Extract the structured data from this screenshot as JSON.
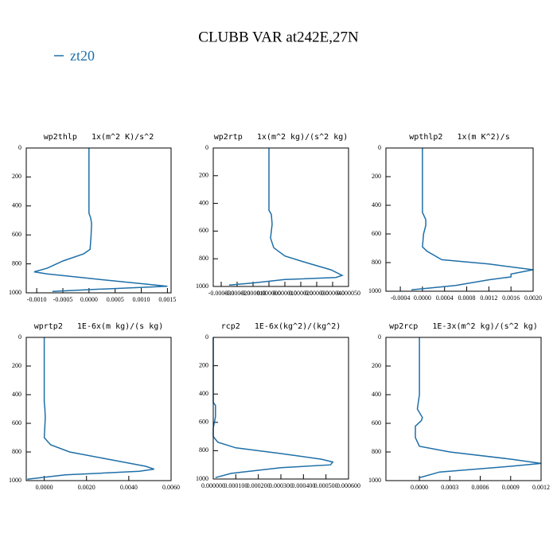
{
  "title": "CLUBB VAR at242E,27N",
  "legend": {
    "name": "zt20",
    "color": "#1f6fa8"
  },
  "chart_data": [
    {
      "type": "line",
      "title": "wp2thlp   1x(m^2 K)/s^2",
      "color": "#1f6fa8",
      "y": [
        0,
        450,
        480,
        520,
        600,
        700,
        730,
        780,
        830,
        855,
        870,
        900,
        955,
        975,
        990
      ],
      "values": [
        0,
        0,
        3e-05,
        5e-05,
        4e-05,
        2e-05,
        -0.0001,
        -0.0005,
        -0.0008,
        -0.00105,
        -0.0008,
        0.0,
        0.0015,
        0.0002,
        -0.0007
      ],
      "xlim": [
        -0.0012,
        0.00157
      ],
      "xticks": [
        {
          "value": -0.001,
          "label": "-0.0010"
        },
        {
          "value": -0.0005,
          "label": "-0.0005"
        },
        {
          "value": 0,
          "label": "0.0000"
        },
        {
          "value": 0.0005,
          "label": "0.0005"
        },
        {
          "value": 0.001,
          "label": "0.0010"
        },
        {
          "value": 0.0015,
          "label": "0.0015"
        }
      ],
      "ylim": [
        1000,
        0
      ],
      "yticks": [
        0,
        200,
        400,
        600,
        800,
        1000
      ]
    },
    {
      "type": "line",
      "title": "wp2rtp   1x(m^2 kg)/(s^2 kg)",
      "color": "#1f6fa8",
      "y": [
        0,
        450,
        480,
        550,
        650,
        720,
        780,
        830,
        880,
        920,
        935,
        950,
        975,
        990
      ],
      "values": [
        0,
        0,
        1.5e-06,
        2e-06,
        1e-06,
        3e-06,
        1e-05,
        2.4e-05,
        3.9e-05,
        4.6e-05,
        4.2e-05,
        1e-05,
        -1e-05,
        -2.5e-05
      ],
      "xlim": [
        -3.5e-05,
        5e-05
      ],
      "xticks": [
        {
          "value": -3e-05,
          "label": "-0.000030"
        },
        {
          "value": -2e-05,
          "label": "-0.000020"
        },
        {
          "value": -1e-05,
          "label": "-0.000010"
        },
        {
          "value": 0,
          "label": "0.000000"
        },
        {
          "value": 1e-05,
          "label": "0.000010"
        },
        {
          "value": 2e-05,
          "label": "0.000020"
        },
        {
          "value": 3e-05,
          "label": "0.000030"
        },
        {
          "value": 4e-05,
          "label": "0.000040"
        },
        {
          "value": 5e-05,
          "label": "0.000050"
        }
      ],
      "ylim": [
        1000,
        0
      ],
      "yticks": [
        0,
        200,
        400,
        600,
        800,
        1000
      ]
    },
    {
      "type": "line",
      "title": "wpthlp2   1x(m K^2)/s",
      "color": "#1f6fa8",
      "y": [
        0,
        450,
        500,
        540,
        600,
        690,
        720,
        780,
        810,
        850,
        880,
        900,
        920,
        960,
        990
      ],
      "values": [
        0,
        0,
        6e-05,
        6e-05,
        2e-05,
        0,
        8e-05,
        0.00035,
        0.0012,
        0.002,
        0.0016,
        0.0016,
        0.0012,
        0.0006,
        -0.0002
      ],
      "xlim": [
        -0.00066,
        0.002
      ],
      "xticks": [
        {
          "value": -0.0004,
          "label": "-0.0004"
        },
        {
          "value": 0,
          "label": "0.0000"
        },
        {
          "value": 0.0004,
          "label": "0.0004"
        },
        {
          "value": 0.0008,
          "label": "0.0008"
        },
        {
          "value": 0.0012,
          "label": "0.0012"
        },
        {
          "value": 0.0016,
          "label": "0.0016"
        },
        {
          "value": 0.002,
          "label": "0.0020"
        }
      ],
      "ylim": [
        1000,
        0
      ],
      "yticks": [
        0,
        200,
        400,
        600,
        800,
        1000
      ]
    },
    {
      "type": "line",
      "title": "wprtp2   1E-6x(m kg)/(s kg)",
      "color": "#1f6fa8",
      "y": [
        0,
        450,
        500,
        560,
        650,
        700,
        750,
        800,
        850,
        900,
        920,
        935,
        960,
        990
      ],
      "values": [
        0,
        0,
        3e-05,
        5e-05,
        2e-05,
        0,
        0.0003,
        0.0012,
        0.003,
        0.0048,
        0.0052,
        0.0045,
        0.001,
        -0.0008
      ],
      "xlim": [
        -0.00085,
        0.006
      ],
      "xticks": [
        {
          "value": 0,
          "label": "0.0000"
        },
        {
          "value": 0.002,
          "label": "0.0020"
        },
        {
          "value": 0.004,
          "label": "0.0040"
        },
        {
          "value": 0.006,
          "label": "0.0060"
        }
      ],
      "ylim": [
        1000,
        0
      ],
      "yticks": [
        0,
        200,
        400,
        600,
        800,
        1000
      ]
    },
    {
      "type": "line",
      "title": "rcp2   1E-6x(kg^2)/(kg^2)",
      "color": "#1f6fa8",
      "y": [
        0,
        460,
        480,
        560,
        640,
        700,
        740,
        780,
        820,
        860,
        880,
        900,
        920,
        960,
        990
      ],
      "values": [
        0,
        0,
        1e-05,
        1e-05,
        0,
        0,
        2e-05,
        0.0001,
        0.0003,
        0.00048,
        0.00053,
        0.00052,
        0.0003,
        8e-05,
        1e-05
      ],
      "xlim": [
        0,
        0.0006
      ],
      "xticks": [
        {
          "value": 0,
          "label": "0.000000"
        },
        {
          "value": 0.0001,
          "label": "0.000100"
        },
        {
          "value": 0.0002,
          "label": "0.000200"
        },
        {
          "value": 0.0003,
          "label": "0.000300"
        },
        {
          "value": 0.0004,
          "label": "0.000400"
        },
        {
          "value": 0.0005,
          "label": "0.000500"
        },
        {
          "value": 0.0006,
          "label": "0.000600"
        }
      ],
      "ylim": [
        1000,
        0
      ],
      "yticks": [
        0,
        200,
        400,
        600,
        800,
        1000
      ]
    },
    {
      "type": "line",
      "title": "wp2rcp   1E-3x(m^2 kg)/(s^2 kg)",
      "color": "#1f6fa8",
      "y": [
        0,
        400,
        500,
        560,
        580,
        620,
        700,
        760,
        800,
        850,
        880,
        900,
        940,
        980
      ],
      "values": [
        0,
        0,
        -2e-05,
        3e-05,
        2e-05,
        -4e-05,
        -4e-05,
        0,
        0.0003,
        0.0009,
        0.0012,
        0.0009,
        0.0002,
        0
      ],
      "xlim": [
        -0.00033,
        0.0012
      ],
      "xticks": [
        {
          "value": 0,
          "label": "0.0000"
        },
        {
          "value": 0.0003,
          "label": "0.0003"
        },
        {
          "value": 0.0006,
          "label": "0.0006"
        },
        {
          "value": 0.0009,
          "label": "0.0009"
        },
        {
          "value": 0.0012,
          "label": "0.0012"
        }
      ],
      "ylim": [
        1000,
        0
      ],
      "yticks": [
        0,
        200,
        400,
        600,
        800,
        1000
      ]
    }
  ]
}
